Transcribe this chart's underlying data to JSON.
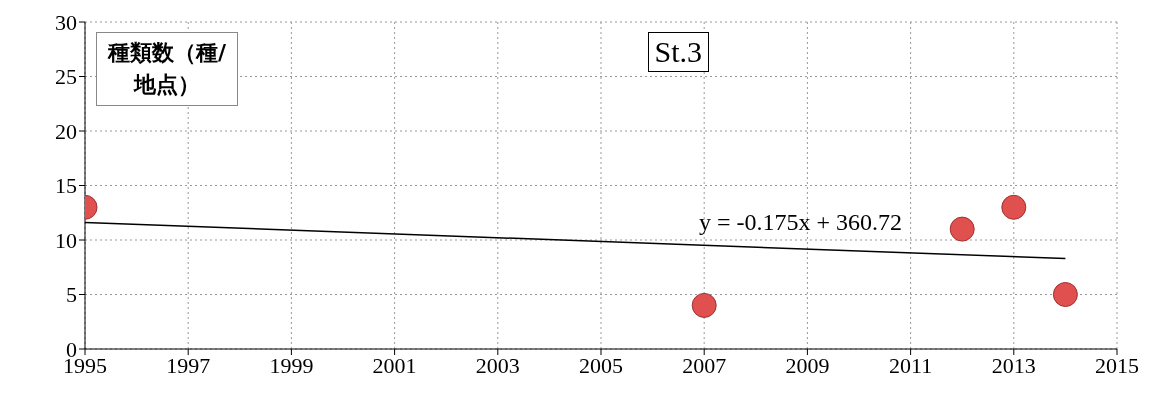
{
  "chart_data": {
    "type": "scatter",
    "title": "St.3",
    "ylabel": "種類数（種/地点）",
    "x": [
      1995,
      2007,
      2012,
      2013,
      2014
    ],
    "series": [
      {
        "color": "#e0504f",
        "values": [
          13,
          4,
          11,
          13,
          5
        ],
        "marker": "circle"
      },
      {
        "type": "line",
        "color": "#000000",
        "x": [
          1995,
          2014
        ],
        "values": [
          11.6,
          8.3
        ],
        "marker": "none",
        "line_style": "solid"
      }
    ],
    "annotations": [
      "y = -0.175x + 360.72"
    ],
    "xlim": [
      1995,
      2015
    ],
    "xticks": [
      1995,
      1997,
      1999,
      2001,
      2003,
      2005,
      2007,
      2009,
      2011,
      2013,
      2015
    ],
    "ylim": [
      0,
      30
    ],
    "yticks": [
      0,
      5,
      10,
      15,
      20,
      25,
      30
    ],
    "grid": true,
    "legend": false
  }
}
